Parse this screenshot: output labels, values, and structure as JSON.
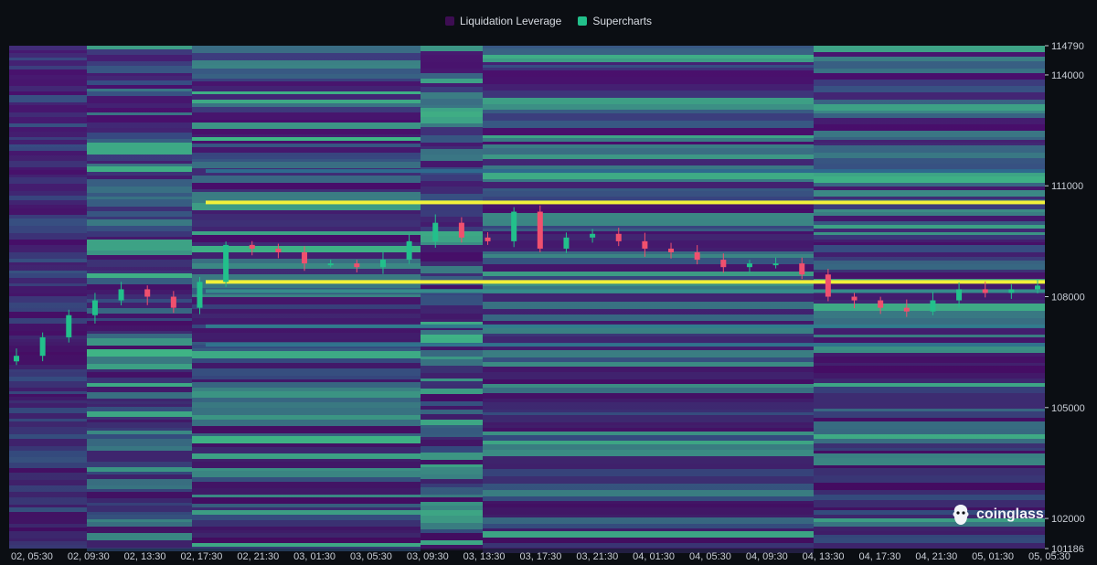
{
  "legend": [
    {
      "label": "Liquidation Leverage",
      "color": "#3d0d52"
    },
    {
      "label": "Supercharts",
      "color": "#22c08b"
    }
  ],
  "brand": {
    "name": "coinglass"
  },
  "colors": {
    "background": "#0b0e13",
    "heat_low": "#4a0f6b",
    "heat_mid": "#2e6a8e",
    "heat_high": "#3fbf87",
    "heat_peak": "#f1f13a",
    "candle_up": "#22c08b",
    "candle_down": "#f0506e",
    "axis_text": "#c9ced6"
  },
  "chart_data": {
    "type": "heatmap",
    "title": "",
    "xlabel": "",
    "ylabel": "",
    "ylim": [
      101186,
      114790
    ],
    "y_ticks": [
      "114790",
      "114000",
      "111000",
      "108000",
      "105000",
      "102000",
      "101186"
    ],
    "x_ticks": [
      "02, 05:30",
      "02, 09:30",
      "02, 13:30",
      "02, 17:30",
      "02, 21:30",
      "03, 01:30",
      "03, 05:30",
      "03, 09:30",
      "03, 13:30",
      "03, 17:30",
      "03, 21:30",
      "04, 01:30",
      "04, 05:30",
      "04, 09:30",
      "04, 13:30",
      "04, 17:30",
      "04, 21:30",
      "05, 01:30",
      "05, 05:30"
    ],
    "price_path": [
      {
        "t": 0,
        "price": 106400
      },
      {
        "t": 1,
        "price": 106900
      },
      {
        "t": 2,
        "price": 107500
      },
      {
        "t": 3,
        "price": 107900
      },
      {
        "t": 4,
        "price": 108200
      },
      {
        "t": 5,
        "price": 108000
      },
      {
        "t": 6,
        "price": 107700
      },
      {
        "t": 7,
        "price": 108400
      },
      {
        "t": 8,
        "price": 109400
      },
      {
        "t": 9,
        "price": 109300
      },
      {
        "t": 10,
        "price": 109200
      },
      {
        "t": 11,
        "price": 108900
      },
      {
        "t": 12,
        "price": 108900
      },
      {
        "t": 13,
        "price": 108800
      },
      {
        "t": 14,
        "price": 109000
      },
      {
        "t": 15,
        "price": 109500
      },
      {
        "t": 16,
        "price": 110000
      },
      {
        "t": 17,
        "price": 109600
      },
      {
        "t": 18,
        "price": 109500
      },
      {
        "t": 19,
        "price": 110300
      },
      {
        "t": 20,
        "price": 109300
      },
      {
        "t": 21,
        "price": 109600
      },
      {
        "t": 22,
        "price": 109700
      },
      {
        "t": 23,
        "price": 109500
      },
      {
        "t": 24,
        "price": 109300
      },
      {
        "t": 25,
        "price": 109200
      },
      {
        "t": 26,
        "price": 109000
      },
      {
        "t": 27,
        "price": 108800
      },
      {
        "t": 28,
        "price": 108900
      },
      {
        "t": 29,
        "price": 108900
      },
      {
        "t": 30,
        "price": 108600
      },
      {
        "t": 31,
        "price": 108000
      },
      {
        "t": 32,
        "price": 107900
      },
      {
        "t": 33,
        "price": 107700
      },
      {
        "t": 34,
        "price": 107600
      },
      {
        "t": 35,
        "price": 107900
      },
      {
        "t": 36,
        "price": 108200
      },
      {
        "t": 37,
        "price": 108100
      },
      {
        "t": 38,
        "price": 108200
      },
      {
        "t": 39,
        "price": 108300
      }
    ],
    "liquidation_levels": [
      {
        "price": 110550,
        "intensity": 1.0
      },
      {
        "price": 108400,
        "intensity": 0.95
      },
      {
        "price": 108150,
        "intensity": 0.7
      },
      {
        "price": 107200,
        "intensity": 0.6
      },
      {
        "price": 106700,
        "intensity": 0.55
      },
      {
        "price": 111400,
        "intensity": 0.5
      }
    ]
  }
}
